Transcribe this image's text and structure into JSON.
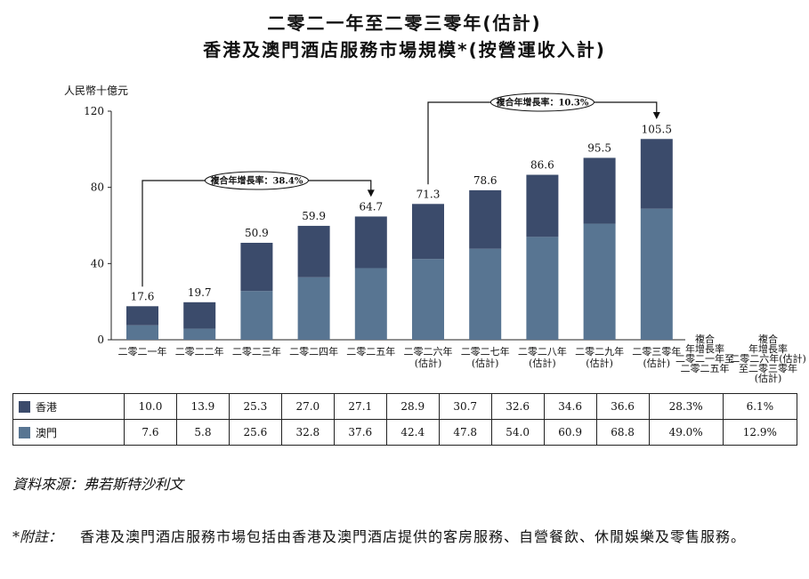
{
  "title_line1": "二零二一年至二零三零年(估計)",
  "title_line2": "香港及澳門酒店服務市場規模*(按營運收入計)",
  "chart_data": {
    "type": "bar",
    "stacked": true,
    "ylabel": "人民幣十億元",
    "ylim": [
      0,
      120
    ],
    "yticks": [
      0,
      40,
      80,
      120
    ],
    "categories": [
      [
        "二零二一年"
      ],
      [
        "二零二二年"
      ],
      [
        "二零二三年"
      ],
      [
        "二零二四年"
      ],
      [
        "二零二五年"
      ],
      [
        "二零二六年",
        "(估計)"
      ],
      [
        "二零二七年",
        "(估計)"
      ],
      [
        "二零二八年",
        "(估計)"
      ],
      [
        "二零二九年",
        "(估計)"
      ],
      [
        "二零三零年",
        "(估計)"
      ]
    ],
    "totals": [
      "17.6",
      "19.7",
      "50.9",
      "59.9",
      "64.7",
      "71.3",
      "78.6",
      "86.6",
      "95.5",
      "105.5"
    ],
    "series": [
      {
        "name": "香港",
        "color": "#3b4b6b",
        "values": [
          10.0,
          13.9,
          25.3,
          27.0,
          27.1,
          28.9,
          30.7,
          32.6,
          34.6,
          36.6
        ]
      },
      {
        "name": "澳門",
        "color": "#587592",
        "values": [
          7.6,
          5.8,
          25.6,
          32.8,
          37.6,
          42.4,
          47.8,
          54.0,
          60.9,
          68.8
        ]
      }
    ],
    "cagr_annotations": [
      {
        "text": "複合年增長率：38.4%",
        "from_index": 0,
        "to_index": 4
      },
      {
        "text": "複合年增長率：10.3%",
        "from_index": 5,
        "to_index": 9
      }
    ],
    "cagr_columns": [
      {
        "header": [
          "複合",
          "年增長率",
          "二零二一年至",
          "二零二五年"
        ],
        "values": [
          "28.3%",
          "49.0%"
        ]
      },
      {
        "header": [
          "複合",
          "年增長率",
          "二零二六年(估計)",
          "至二零三零年",
          "(估計)"
        ],
        "values": [
          "6.1%",
          "12.9%"
        ]
      }
    ],
    "table_rows": [
      {
        "label": "香港",
        "values": [
          "10.0",
          "13.9",
          "25.3",
          "27.0",
          "27.1",
          "28.9",
          "30.7",
          "32.6",
          "34.6",
          "36.6"
        ]
      },
      {
        "label": "澳門",
        "values": [
          "7.6",
          "5.8",
          "25.6",
          "32.8",
          "37.6",
          "42.4",
          "47.8",
          "54.0",
          "60.9",
          "68.8"
        ]
      }
    ]
  },
  "source": "資料來源：弗若斯特沙利文",
  "note_key": "*附註：",
  "note_text": "香港及澳門酒店服務市場包括由香港及澳門酒店提供的客房服務、自營餐飲、休閒娛樂及零售服務。"
}
